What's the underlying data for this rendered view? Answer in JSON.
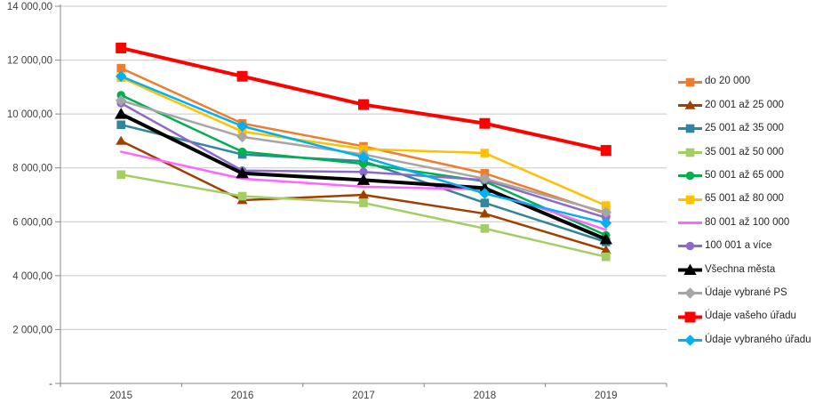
{
  "chart_data": {
    "type": "line",
    "title": "",
    "categories": [
      "2015",
      "2016",
      "2017",
      "2018",
      "2019"
    ],
    "y_axis": {
      "min": 0,
      "max": 14000,
      "step": 2000,
      "tick_labels": [
        "-",
        "2 000,00",
        "4 000,00",
        "6 000,00",
        "8 000,00",
        "10 000,00",
        "12 000,00",
        "14 000,00"
      ]
    },
    "grid": true,
    "legend_position": "right",
    "series": [
      {
        "name": "do 20 000",
        "color": "#ED7D31",
        "marker": "square",
        "thick": false,
        "values": [
          11700,
          9650,
          8800,
          7800,
          6300
        ]
      },
      {
        "name": "20 001 až 25 000",
        "color": "#A04000",
        "marker": "triangle",
        "thick": false,
        "values": [
          9000,
          6800,
          7000,
          6300,
          4950
        ]
      },
      {
        "name": "25 001 až 35 000",
        "color": "#31859C",
        "marker": "square",
        "thick": false,
        "values": [
          9600,
          8500,
          8250,
          6700,
          5250
        ]
      },
      {
        "name": "35 001 až 50 000",
        "color": "#A2CE63",
        "marker": "square",
        "thick": false,
        "values": [
          7750,
          6950,
          6700,
          5750,
          4700
        ]
      },
      {
        "name": "50 001 až 65 000",
        "color": "#00B050",
        "marker": "circle",
        "thick": false,
        "values": [
          10700,
          8600,
          8150,
          7500,
          5500
        ]
      },
      {
        "name": "65 001 až 80 000",
        "color": "#FFC000",
        "marker": "square",
        "thick": false,
        "values": [
          11350,
          9350,
          8700,
          8550,
          6600
        ]
      },
      {
        "name": "80 001 až 100 000",
        "color": "#FF66FF",
        "marker": "none",
        "thick": false,
        "values": [
          8600,
          7600,
          7300,
          7200,
          5700
        ]
      },
      {
        "name": "100 001 a více",
        "color": "#8C6BC8",
        "marker": "circle",
        "thick": false,
        "values": [
          10400,
          7900,
          7850,
          7550,
          6150
        ]
      },
      {
        "name": "Všechna města",
        "color": "#000000",
        "marker": "triangle",
        "thick": true,
        "values": [
          10000,
          7800,
          7550,
          7250,
          5350
        ]
      },
      {
        "name": "Údaje vybrané PS",
        "color": "#A6A6A6",
        "marker": "diamond",
        "thick": false,
        "values": [
          10500,
          9150,
          8500,
          7600,
          6350
        ]
      },
      {
        "name": "Údaje vašeho úřadu",
        "color": "#FF0000",
        "marker": "square",
        "thick": true,
        "values": [
          12450,
          11400,
          10350,
          9650,
          8650
        ]
      },
      {
        "name": "Údaje vybraného úřadu",
        "color": "#00B0F0",
        "marker": "diamond",
        "thick": false,
        "values": [
          11400,
          9550,
          8400,
          7050,
          5950
        ]
      }
    ]
  },
  "style_colors": {
    "gridline": "#C9C9C9",
    "axis": "#898989",
    "tick_text": "#404040",
    "legend_text": "#262626",
    "background": "#FFFFFF"
  }
}
